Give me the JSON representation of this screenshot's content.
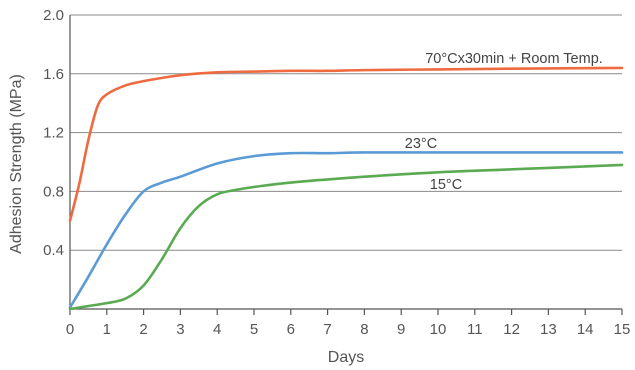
{
  "chart_data": {
    "type": "line",
    "title": "",
    "xlabel": "Days",
    "ylabel": "Adhesion Strength (MPa)",
    "xlim": [
      0,
      15
    ],
    "ylim": [
      0,
      2.0
    ],
    "x_ticks": [
      "0",
      "1",
      "2",
      "3",
      "4",
      "5",
      "6",
      "7",
      "8",
      "9",
      "10",
      "11",
      "12",
      "13",
      "14",
      "15"
    ],
    "y_ticks": [
      "0.4",
      "0.8",
      "1.2",
      "1.6",
      "2.0"
    ],
    "grid": "horizontal",
    "legend": "inline labels",
    "series": [
      {
        "name": "70°Cx30min + Room Temp.",
        "color": "#ee6a40",
        "x": [
          0,
          0.25,
          0.5,
          0.75,
          1,
          1.5,
          2,
          3,
          4,
          5,
          6,
          7,
          8,
          10,
          12,
          15
        ],
        "y": [
          0.6,
          0.85,
          1.15,
          1.38,
          1.46,
          1.52,
          1.55,
          1.59,
          1.61,
          1.615,
          1.62,
          1.62,
          1.625,
          1.63,
          1.635,
          1.64
        ]
      },
      {
        "name": "23°C",
        "color": "#5b9bd5",
        "x": [
          0,
          0.5,
          1,
          1.5,
          2,
          2.5,
          3,
          4,
          5,
          6,
          7,
          8,
          10,
          12,
          15
        ],
        "y": [
          0.01,
          0.22,
          0.44,
          0.64,
          0.8,
          0.86,
          0.9,
          0.99,
          1.04,
          1.06,
          1.06,
          1.065,
          1.065,
          1.065,
          1.065
        ]
      },
      {
        "name": "15°C",
        "color": "#5aaa52",
        "x": [
          0,
          0.5,
          1,
          1.5,
          2,
          2.5,
          3,
          3.5,
          4,
          4.5,
          5,
          6,
          8,
          10,
          12,
          15
        ],
        "y": [
          0.0,
          0.02,
          0.04,
          0.07,
          0.16,
          0.34,
          0.55,
          0.7,
          0.78,
          0.81,
          0.83,
          0.86,
          0.9,
          0.93,
          0.95,
          0.98
        ]
      }
    ]
  }
}
